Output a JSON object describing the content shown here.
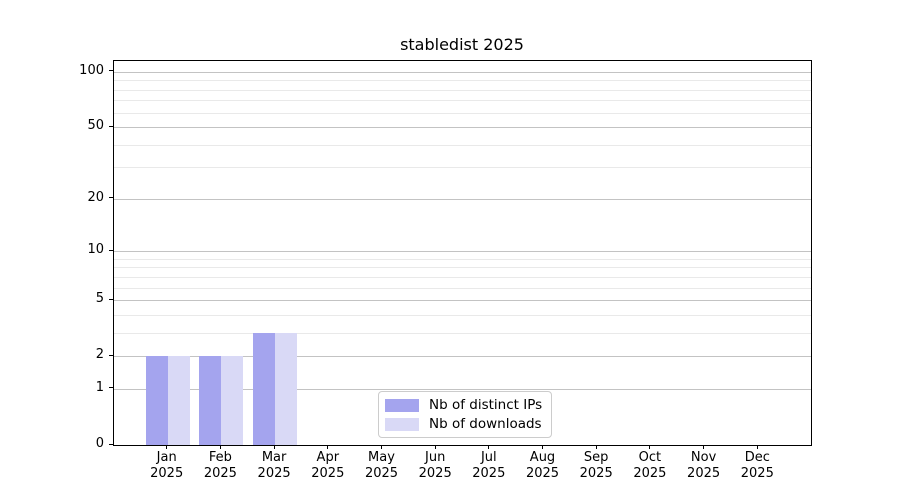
{
  "chart_data": {
    "type": "bar",
    "title": "stabledist 2025",
    "categories": [
      "Jan",
      "Feb",
      "Mar",
      "Apr",
      "May",
      "Jun",
      "Jul",
      "Aug",
      "Sep",
      "Oct",
      "Nov",
      "Dec"
    ],
    "category_year": "2025",
    "series": [
      {
        "name": "Nb of distinct IPs",
        "color": "#a4a4ee",
        "values": [
          2,
          2,
          3,
          0,
          0,
          0,
          0,
          0,
          0,
          0,
          0,
          0
        ]
      },
      {
        "name": "Nb of downloads",
        "color": "#d9d9f6",
        "values": [
          2,
          2,
          3,
          0,
          0,
          0,
          0,
          0,
          0,
          0,
          0,
          0
        ]
      }
    ],
    "yscale": "log1p",
    "ylim": [
      0,
      115
    ],
    "yticks": [
      0,
      1,
      2,
      5,
      10,
      20,
      50,
      100
    ],
    "minor_gridlines": [
      3,
      4,
      6,
      7,
      8,
      9,
      30,
      40,
      60,
      70,
      80,
      90
    ],
    "grid": "horizontal",
    "legend_position": "lower center",
    "colors": {
      "major_grid": "#c3c3c3",
      "minor_grid": "#e9e9e9",
      "spine": "#000000",
      "background": "#ffffff"
    }
  }
}
